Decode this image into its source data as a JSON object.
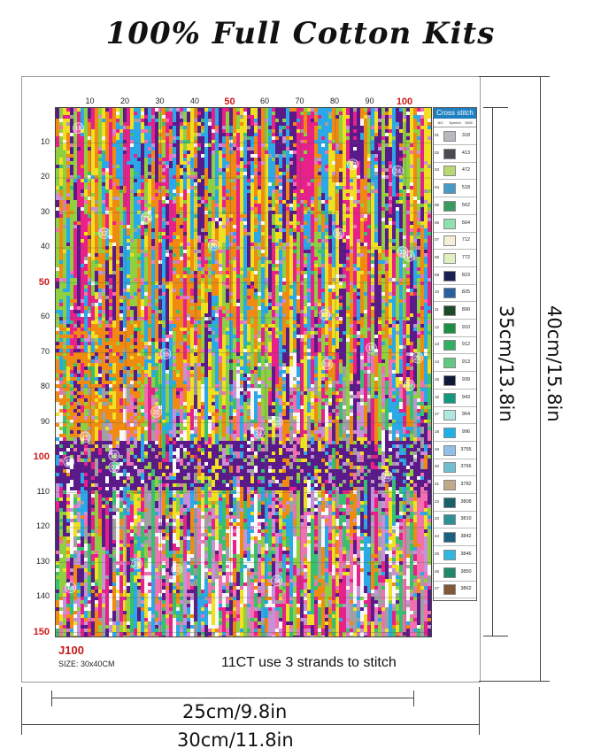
{
  "title": "100% Full Cotton Kits",
  "x_ticks": [
    "10",
    "20",
    "30",
    "40",
    "50",
    "60",
    "70",
    "80",
    "90",
    "100"
  ],
  "y_ticks": [
    "10",
    "20",
    "30",
    "40",
    "50",
    "60",
    "70",
    "80",
    "90",
    "100",
    "110",
    "120",
    "130",
    "140",
    "150"
  ],
  "highlight_ticks": [
    "50",
    "100",
    "150"
  ],
  "key": {
    "title": "Cross stitch",
    "head_no": "NO.",
    "head_symbol": "Symbol",
    "head_dmc": "DMC",
    "rows": [
      {
        "no": "01",
        "dmc": "318",
        "color": "#b8b8c0"
      },
      {
        "no": "02",
        "dmc": "413",
        "color": "#4a4a55"
      },
      {
        "no": "03",
        "dmc": "472",
        "color": "#b8d870"
      },
      {
        "no": "04",
        "dmc": "518",
        "color": "#4a9ac8"
      },
      {
        "no": "05",
        "dmc": "562",
        "color": "#3a9a60"
      },
      {
        "no": "06",
        "dmc": "564",
        "color": "#90e0b0"
      },
      {
        "no": "07",
        "dmc": "712",
        "color": "#f5efd8"
      },
      {
        "no": "08",
        "dmc": "772",
        "color": "#e0f0c0"
      },
      {
        "no": "09",
        "dmc": "823",
        "color": "#1a2050"
      },
      {
        "no": "10",
        "dmc": "825",
        "color": "#2a60a0"
      },
      {
        "no": "11",
        "dmc": "890",
        "color": "#1a4a28"
      },
      {
        "no": "12",
        "dmc": "910",
        "color": "#1a9040"
      },
      {
        "no": "13",
        "dmc": "912",
        "color": "#30b060"
      },
      {
        "no": "14",
        "dmc": "913",
        "color": "#60c880"
      },
      {
        "no": "15",
        "dmc": "939",
        "color": "#101838"
      },
      {
        "no": "16",
        "dmc": "943",
        "color": "#109880"
      },
      {
        "no": "17",
        "dmc": "964",
        "color": "#b0e8e0"
      },
      {
        "no": "18",
        "dmc": "996",
        "color": "#20b0e8"
      },
      {
        "no": "19",
        "dmc": "3755",
        "color": "#90c0e8"
      },
      {
        "no": "20",
        "dmc": "3766",
        "color": "#70c0d0"
      },
      {
        "no": "21",
        "dmc": "3782",
        "color": "#c0a888"
      },
      {
        "no": "22",
        "dmc": "3808",
        "color": "#1a6068"
      },
      {
        "no": "23",
        "dmc": "3810",
        "color": "#309098"
      },
      {
        "no": "24",
        "dmc": "3842",
        "color": "#1a6080"
      },
      {
        "no": "25",
        "dmc": "3846",
        "color": "#30b8e0"
      },
      {
        "no": "26",
        "dmc": "3850",
        "color": "#208868"
      },
      {
        "no": "27",
        "dmc": "3862",
        "color": "#805838"
      }
    ]
  },
  "code": "J100",
  "size_text": "SIZE:  30x40CM",
  "note": "11CT use 3 strands to stitch",
  "dim_inner_width": "25cm/9.8in",
  "dim_outer_width": "30cm/11.8in",
  "dim_inner_height": "35cm/13.8in",
  "dim_outer_height": "40cm/15.8in",
  "palette": [
    "#f0e020",
    "#e8208a",
    "#5b1a8a",
    "#8fd040",
    "#f08a10",
    "#2aa8e8",
    "#c890d8",
    "#f8f8f8",
    "#a0a0a0",
    "#f070b0",
    "#38c070"
  ],
  "grid_labels": [
    "14",
    "25",
    "15",
    "16",
    "22",
    "07",
    "18",
    "24",
    "12"
  ]
}
